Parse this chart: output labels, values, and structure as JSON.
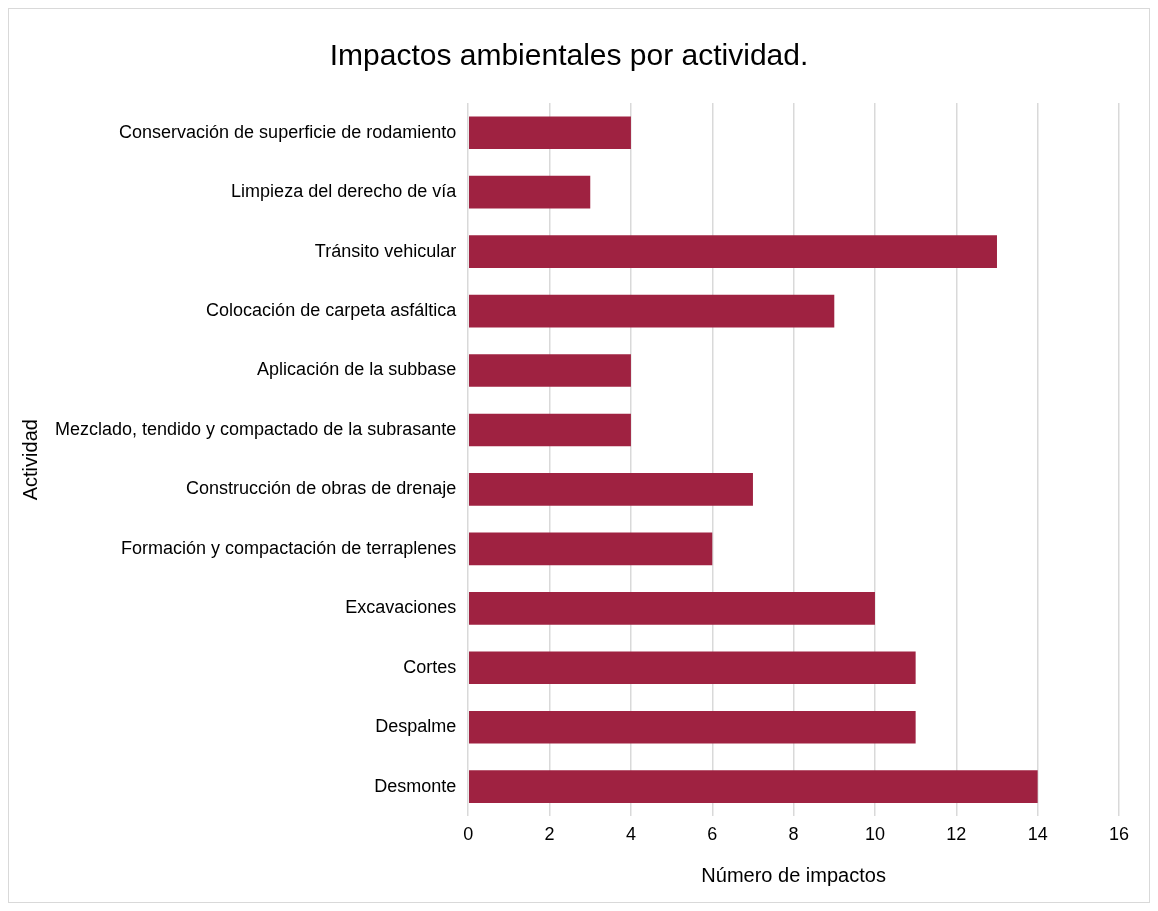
{
  "chart_data": {
    "type": "bar",
    "orientation": "horizontal",
    "title": "Impactos ambientales por actividad.",
    "xlabel": "Número de impactos",
    "ylabel": "Actividad",
    "categories": [
      "Conservación de superficie de rodamiento",
      "Limpieza del derecho de vía",
      "Tránsito vehicular",
      "Colocación de carpeta asfáltica",
      "Aplicación de la subbase",
      "Mezclado, tendido y compactado de la subrasante",
      "Construcción de obras de drenaje",
      "Formación y compactación de terraplenes",
      "Excavaciones",
      "Cortes",
      "Despalme",
      "Desmonte"
    ],
    "values": [
      4,
      3,
      13,
      9,
      4,
      4,
      7,
      6,
      10,
      11,
      11,
      14
    ],
    "color": "#9f2241",
    "xlim": [
      0,
      16
    ],
    "xticks": [
      0,
      2,
      4,
      6,
      8,
      10,
      12,
      14,
      16
    ],
    "grid": "x",
    "legend": false
  }
}
